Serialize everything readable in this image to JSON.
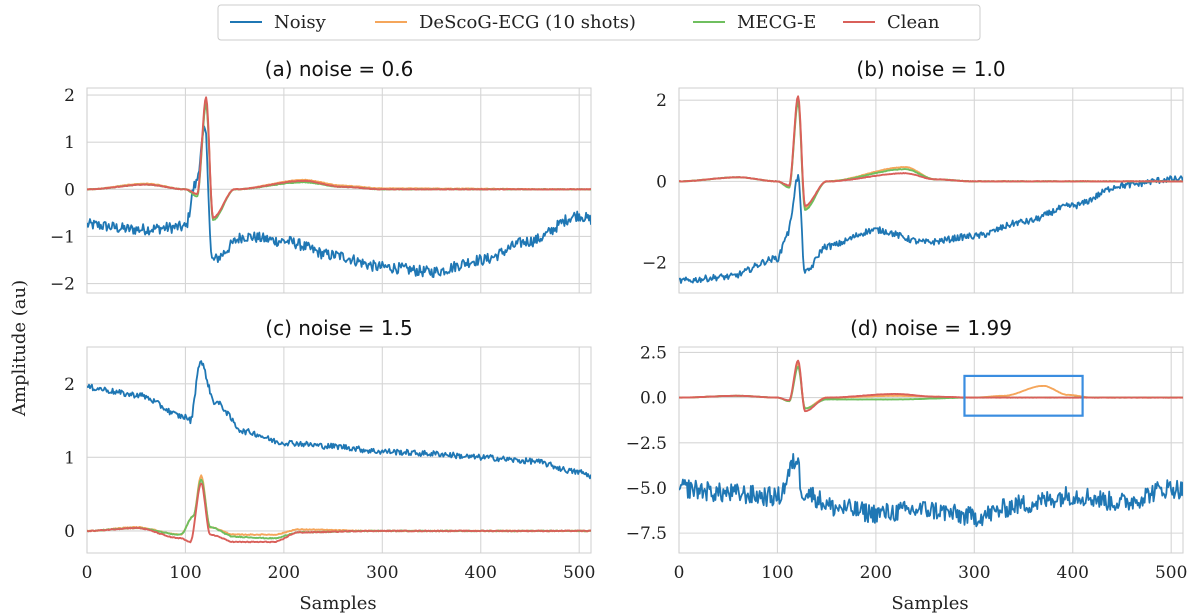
{
  "figure": {
    "ylabel": "Amplitude (au)",
    "xlabel": "Samples"
  },
  "legend": {
    "placement": "top-center",
    "entries": [
      {
        "name": "Noisy",
        "color": "#1f77b4"
      },
      {
        "name": "DeScoG-ECG (10 shots)",
        "color": "#f5a65b"
      },
      {
        "name": "MECG-E",
        "color": "#6fbf5f"
      },
      {
        "name": "Clean",
        "color": "#d9605a"
      }
    ]
  },
  "chart_data": [
    {
      "type": "line",
      "title": "(a) noise = 0.6",
      "xlabel": "",
      "ylabel": "",
      "xlim": [
        0,
        512
      ],
      "ylim": [
        -2.2,
        2.15
      ],
      "xticks": [
        0,
        100,
        200,
        300,
        400,
        500
      ],
      "yticks": [
        -2,
        -1,
        0,
        1,
        2
      ],
      "grid": true,
      "key_points": {
        "Noisy": [
          [
            0,
            -0.75
          ],
          [
            50,
            -0.85
          ],
          [
            100,
            -0.8
          ],
          [
            110,
            0.1
          ],
          [
            120,
            1.25
          ],
          [
            127,
            -1.5
          ],
          [
            160,
            -1.0
          ],
          [
            200,
            -1.1
          ],
          [
            250,
            -1.4
          ],
          [
            300,
            -1.65
          ],
          [
            350,
            -1.75
          ],
          [
            400,
            -1.5
          ],
          [
            450,
            -1.1
          ],
          [
            500,
            -0.55
          ],
          [
            512,
            -0.65
          ]
        ],
        "DeScoG-ECG (10 shots)": [
          [
            0,
            0
          ],
          [
            60,
            0.12
          ],
          [
            100,
            0
          ],
          [
            112,
            -0.1
          ],
          [
            121,
            1.85
          ],
          [
            128,
            -0.6
          ],
          [
            150,
            0
          ],
          [
            220,
            0.2
          ],
          [
            260,
            0.08
          ],
          [
            300,
            0.02
          ],
          [
            512,
            0
          ]
        ],
        "MECG-E": [
          [
            0,
            0
          ],
          [
            60,
            0.1
          ],
          [
            100,
            0
          ],
          [
            112,
            -0.15
          ],
          [
            121,
            1.8
          ],
          [
            128,
            -0.65
          ],
          [
            150,
            0
          ],
          [
            220,
            0.15
          ],
          [
            260,
            0.05
          ],
          [
            300,
            0
          ],
          [
            512,
            0
          ]
        ],
        "Clean": [
          [
            0,
            0
          ],
          [
            60,
            0.1
          ],
          [
            100,
            0
          ],
          [
            112,
            -0.1
          ],
          [
            121,
            1.95
          ],
          [
            128,
            -0.6
          ],
          [
            150,
            0
          ],
          [
            220,
            0.18
          ],
          [
            260,
            0.05
          ],
          [
            300,
            0
          ],
          [
            512,
            0
          ]
        ]
      }
    },
    {
      "type": "line",
      "title": "(b) noise = 1.0",
      "xlabel": "",
      "ylabel": "",
      "xlim": [
        0,
        512
      ],
      "ylim": [
        -2.75,
        2.3
      ],
      "xticks": [
        0,
        100,
        200,
        300,
        400,
        500
      ],
      "yticks": [
        -2,
        0,
        2
      ],
      "grid": true,
      "key_points": {
        "Noisy": [
          [
            0,
            -2.45
          ],
          [
            50,
            -2.35
          ],
          [
            100,
            -1.9
          ],
          [
            110,
            -1.3
          ],
          [
            121,
            0.1
          ],
          [
            128,
            -2.25
          ],
          [
            150,
            -1.6
          ],
          [
            200,
            -1.2
          ],
          [
            250,
            -1.5
          ],
          [
            300,
            -1.35
          ],
          [
            350,
            -1.0
          ],
          [
            400,
            -0.6
          ],
          [
            450,
            -0.1
          ],
          [
            500,
            0.05
          ],
          [
            512,
            0.05
          ]
        ],
        "DeScoG-ECG (10 shots)": [
          [
            0,
            0
          ],
          [
            60,
            0.1
          ],
          [
            100,
            0
          ],
          [
            112,
            -0.15
          ],
          [
            121,
            2.05
          ],
          [
            128,
            -0.65
          ],
          [
            150,
            0
          ],
          [
            230,
            0.35
          ],
          [
            260,
            0.05
          ],
          [
            300,
            0
          ],
          [
            512,
            0
          ]
        ],
        "MECG-E": [
          [
            0,
            0
          ],
          [
            60,
            0.1
          ],
          [
            100,
            0
          ],
          [
            112,
            -0.15
          ],
          [
            121,
            1.95
          ],
          [
            128,
            -0.7
          ],
          [
            150,
            0
          ],
          [
            230,
            0.3
          ],
          [
            260,
            0.05
          ],
          [
            300,
            0
          ],
          [
            512,
            0
          ]
        ],
        "Clean": [
          [
            0,
            0
          ],
          [
            60,
            0.1
          ],
          [
            100,
            0
          ],
          [
            112,
            -0.1
          ],
          [
            121,
            2.1
          ],
          [
            128,
            -0.6
          ],
          [
            150,
            0
          ],
          [
            230,
            0.2
          ],
          [
            260,
            0.05
          ],
          [
            300,
            0
          ],
          [
            512,
            0
          ]
        ]
      }
    },
    {
      "type": "line",
      "title": "(c) noise = 1.5",
      "xlabel": "Samples",
      "ylabel": "",
      "xlim": [
        0,
        512
      ],
      "ylim": [
        -0.3,
        2.5
      ],
      "xticks": [
        0,
        100,
        200,
        300,
        400,
        500
      ],
      "yticks": [
        0,
        1,
        2
      ],
      "grid": true,
      "key_points": {
        "Noisy": [
          [
            0,
            1.95
          ],
          [
            50,
            1.85
          ],
          [
            100,
            1.55
          ],
          [
            105,
            1.5
          ],
          [
            115,
            2.3
          ],
          [
            130,
            1.75
          ],
          [
            160,
            1.35
          ],
          [
            200,
            1.2
          ],
          [
            250,
            1.15
          ],
          [
            300,
            1.08
          ],
          [
            350,
            1.05
          ],
          [
            400,
            1.0
          ],
          [
            450,
            0.95
          ],
          [
            500,
            0.8
          ],
          [
            512,
            0.75
          ]
        ],
        "DeScoG-ECG (10 shots)": [
          [
            0,
            0
          ],
          [
            50,
            0.05
          ],
          [
            95,
            -0.05
          ],
          [
            108,
            0.2
          ],
          [
            116,
            0.75
          ],
          [
            125,
            0.05
          ],
          [
            150,
            -0.05
          ],
          [
            190,
            -0.05
          ],
          [
            215,
            0.02
          ],
          [
            290,
            0
          ],
          [
            512,
            0
          ]
        ],
        "MECG-E": [
          [
            0,
            0
          ],
          [
            50,
            0.04
          ],
          [
            95,
            -0.05
          ],
          [
            108,
            0.2
          ],
          [
            116,
            0.7
          ],
          [
            125,
            0.05
          ],
          [
            150,
            -0.08
          ],
          [
            190,
            -0.1
          ],
          [
            215,
            -0.02
          ],
          [
            290,
            0
          ],
          [
            512,
            0
          ]
        ],
        "Clean": [
          [
            0,
            0
          ],
          [
            50,
            0.04
          ],
          [
            95,
            -0.1
          ],
          [
            105,
            -0.15
          ],
          [
            116,
            0.65
          ],
          [
            125,
            -0.05
          ],
          [
            150,
            -0.15
          ],
          [
            190,
            -0.15
          ],
          [
            215,
            -0.02
          ],
          [
            290,
            0
          ],
          [
            512,
            0
          ]
        ]
      }
    },
    {
      "type": "line",
      "title": "(d) noise = 1.99",
      "xlabel": "Samples",
      "ylabel": "",
      "xlim": [
        0,
        512
      ],
      "ylim": [
        -8.6,
        2.8
      ],
      "xticks": [
        0,
        100,
        200,
        300,
        400,
        500
      ],
      "yticks": [
        2.5,
        0.0,
        -2.5,
        -5.0,
        -7.5
      ],
      "ytick_labels": [
        "2.5",
        "0.0",
        "−2.5",
        "−5.0",
        "−7.5"
      ],
      "grid": true,
      "highlight_box": {
        "x": [
          290,
          410
        ],
        "y": [
          -1.0,
          1.2
        ],
        "color": "#3a8de0"
      },
      "key_points": {
        "Noisy": [
          [
            0,
            -5.0
          ],
          [
            50,
            -5.3
          ],
          [
            100,
            -5.5
          ],
          [
            120,
            -3.4
          ],
          [
            125,
            -5.2
          ],
          [
            160,
            -6.1
          ],
          [
            200,
            -6.4
          ],
          [
            250,
            -6.2
          ],
          [
            300,
            -6.6
          ],
          [
            350,
            -5.9
          ],
          [
            400,
            -5.4
          ],
          [
            450,
            -5.8
          ],
          [
            500,
            -5.0
          ],
          [
            512,
            -5.1
          ]
        ],
        "DeScoG-ECG (10 shots)": [
          [
            0,
            0
          ],
          [
            60,
            0.1
          ],
          [
            100,
            0
          ],
          [
            112,
            -0.2
          ],
          [
            121,
            1.9
          ],
          [
            128,
            -0.6
          ],
          [
            150,
            0
          ],
          [
            220,
            0.1
          ],
          [
            300,
            0
          ],
          [
            330,
            0.1
          ],
          [
            370,
            0.65
          ],
          [
            395,
            0.15
          ],
          [
            420,
            0
          ],
          [
            512,
            0
          ]
        ],
        "MECG-E": [
          [
            0,
            0
          ],
          [
            60,
            0.1
          ],
          [
            100,
            0
          ],
          [
            112,
            -0.2
          ],
          [
            121,
            1.7
          ],
          [
            128,
            -0.6
          ],
          [
            150,
            -0.1
          ],
          [
            220,
            -0.1
          ],
          [
            300,
            0
          ],
          [
            512,
            0
          ]
        ],
        "Clean": [
          [
            0,
            0
          ],
          [
            60,
            0.1
          ],
          [
            100,
            0
          ],
          [
            112,
            -0.15
          ],
          [
            121,
            2.05
          ],
          [
            128,
            -0.75
          ],
          [
            150,
            0
          ],
          [
            220,
            0.2
          ],
          [
            260,
            0.05
          ],
          [
            300,
            0
          ],
          [
            512,
            0
          ]
        ]
      }
    }
  ]
}
